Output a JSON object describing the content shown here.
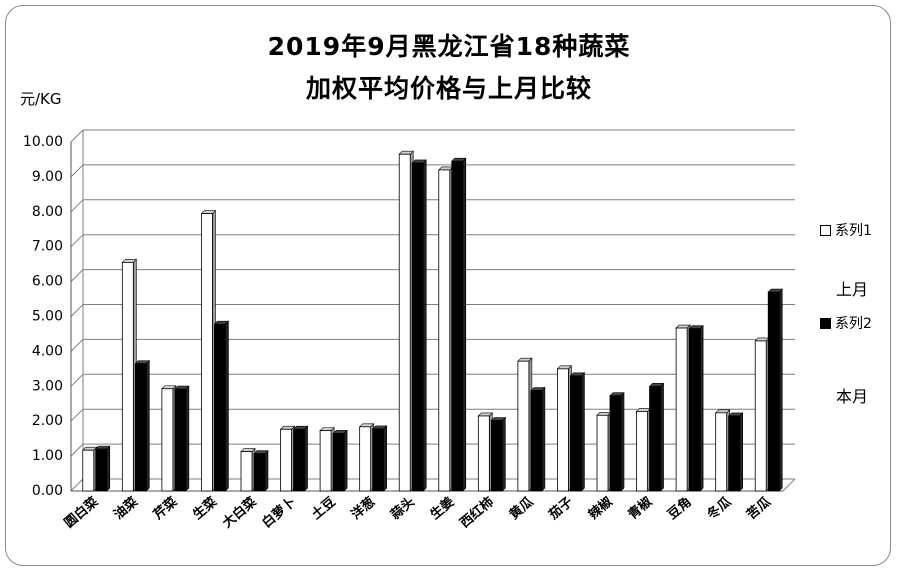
{
  "chart_data": {
    "type": "bar",
    "title_line1": "2019年9月黑龙江省18种蔬菜",
    "title_line2": "加权平均价格与上月比较",
    "ylabel": "元/KG",
    "ylim": [
      0,
      10
    ],
    "yticks": [
      "0.00",
      "1.00",
      "2.00",
      "3.00",
      "4.00",
      "5.00",
      "6.00",
      "7.00",
      "8.00",
      "9.00",
      "10.00"
    ],
    "categories": [
      "圆白菜",
      "油菜",
      "芹菜",
      "生菜",
      "大白菜",
      "白萝卜",
      "土豆",
      "洋葱",
      "蒜头",
      "生姜",
      "西红柿",
      "黄瓜",
      "茄子",
      "辣椒",
      "青椒",
      "豆角",
      "冬瓜",
      "苦瓜"
    ],
    "series": [
      {
        "name": "系列1",
        "color": "#ffffff",
        "values": [
          1.17,
          6.55,
          2.93,
          7.95,
          1.13,
          1.77,
          1.73,
          1.84,
          9.65,
          9.2,
          2.15,
          3.72,
          3.5,
          2.17,
          2.28,
          4.67,
          2.24,
          4.3
        ]
      },
      {
        "name": "系列2",
        "color": "#000000",
        "values": [
          1.2,
          3.65,
          2.92,
          4.78,
          1.07,
          1.77,
          1.65,
          1.78,
          9.4,
          9.45,
          2.02,
          2.88,
          3.3,
          2.73,
          3.0,
          4.65,
          2.15,
          5.7
        ]
      }
    ],
    "legend_notes": [
      "上月",
      "本月"
    ],
    "grid": true,
    "legend_position": "right"
  }
}
